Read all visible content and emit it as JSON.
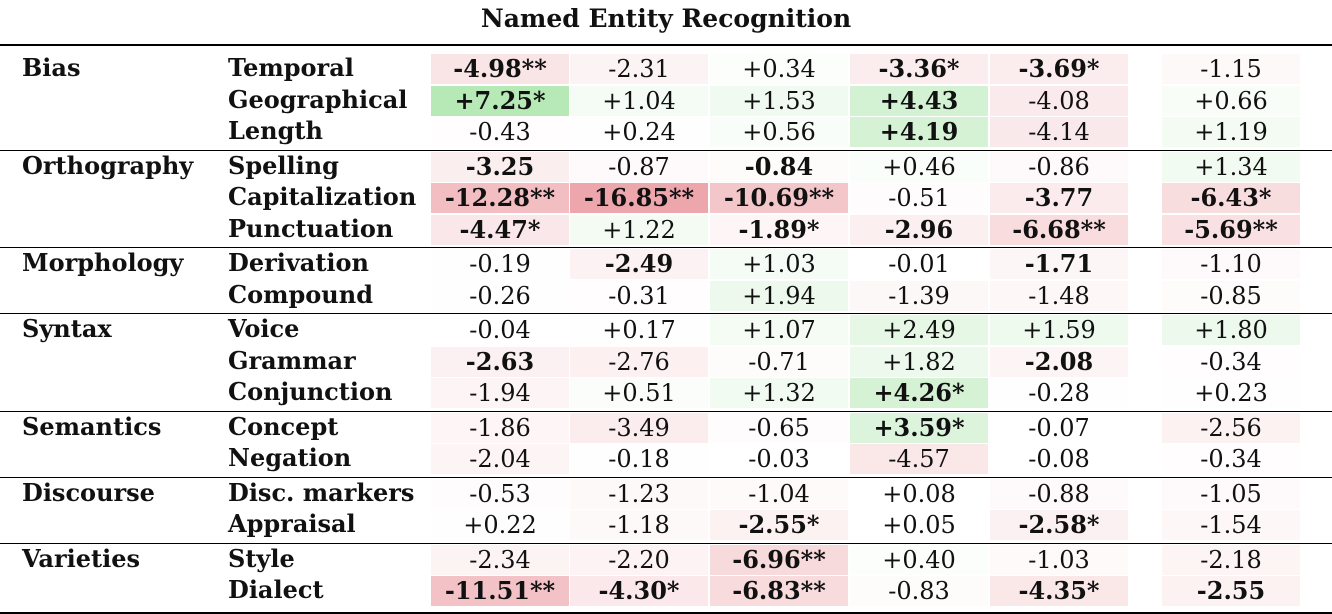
{
  "title": "Named Entity Recognition",
  "colors": {
    "negative": "#e06a72",
    "positive": "#7ad67a"
  },
  "groups": [
    {
      "category": "Bias",
      "rows": [
        {
          "label": "Temporal",
          "cells": [
            {
              "text": "-4.98**",
              "value": -4.98,
              "bold": true
            },
            {
              "text": "-2.31",
              "value": -2.31,
              "bold": false
            },
            {
              "text": "+0.34",
              "value": 0.34,
              "bold": false
            },
            {
              "text": "-3.36*",
              "value": -3.36,
              "bold": true
            },
            {
              "text": "-3.69*",
              "value": -3.69,
              "bold": true
            },
            {
              "text": "-1.15",
              "value": -1.15,
              "bold": false
            }
          ]
        },
        {
          "label": "Geographical",
          "cells": [
            {
              "text": "+7.25*",
              "value": 7.25,
              "bold": true
            },
            {
              "text": "+1.04",
              "value": 1.04,
              "bold": false
            },
            {
              "text": "+1.53",
              "value": 1.53,
              "bold": false
            },
            {
              "text": "+4.43",
              "value": 4.43,
              "bold": true
            },
            {
              "text": "-4.08",
              "value": -4.08,
              "bold": false
            },
            {
              "text": "+0.66",
              "value": 0.66,
              "bold": false
            }
          ]
        },
        {
          "label": "Length",
          "cells": [
            {
              "text": "-0.43",
              "value": -0.43,
              "bold": false
            },
            {
              "text": "+0.24",
              "value": 0.24,
              "bold": false
            },
            {
              "text": "+0.56",
              "value": 0.56,
              "bold": false
            },
            {
              "text": "+4.19",
              "value": 4.19,
              "bold": true
            },
            {
              "text": "-4.14",
              "value": -4.14,
              "bold": false
            },
            {
              "text": "+1.19",
              "value": 1.19,
              "bold": false
            }
          ]
        }
      ]
    },
    {
      "category": "Orthography",
      "rows": [
        {
          "label": "Spelling",
          "cells": [
            {
              "text": "-3.25",
              "value": -3.25,
              "bold": true
            },
            {
              "text": "-0.87",
              "value": -0.87,
              "bold": false
            },
            {
              "text": "-0.84",
              "value": -0.84,
              "bold": true
            },
            {
              "text": "+0.46",
              "value": 0.46,
              "bold": false
            },
            {
              "text": "-0.86",
              "value": -0.86,
              "bold": false
            },
            {
              "text": "+1.34",
              "value": 1.34,
              "bold": false
            }
          ]
        },
        {
          "label": "Capitalization",
          "cells": [
            {
              "text": "-12.28**",
              "value": -12.28,
              "bold": true
            },
            {
              "text": "-16.85**",
              "value": -16.85,
              "bold": true
            },
            {
              "text": "-10.69**",
              "value": -10.69,
              "bold": true
            },
            {
              "text": "-0.51",
              "value": -0.51,
              "bold": false
            },
            {
              "text": "-3.77",
              "value": -3.77,
              "bold": true
            },
            {
              "text": "-6.43*",
              "value": -6.43,
              "bold": true
            }
          ]
        },
        {
          "label": "Punctuation",
          "cells": [
            {
              "text": "-4.47*",
              "value": -4.47,
              "bold": true
            },
            {
              "text": "+1.22",
              "value": 1.22,
              "bold": false
            },
            {
              "text": "-1.89*",
              "value": -1.89,
              "bold": true
            },
            {
              "text": "-2.96",
              "value": -2.96,
              "bold": true
            },
            {
              "text": "-6.68**",
              "value": -6.68,
              "bold": true
            },
            {
              "text": "-5.69**",
              "value": -5.69,
              "bold": true
            }
          ]
        }
      ]
    },
    {
      "category": "Morphology",
      "rows": [
        {
          "label": "Derivation",
          "cells": [
            {
              "text": "-0.19",
              "value": -0.19,
              "bold": false
            },
            {
              "text": "-2.49",
              "value": -2.49,
              "bold": true
            },
            {
              "text": "+1.03",
              "value": 1.03,
              "bold": false
            },
            {
              "text": "-0.01",
              "value": -0.01,
              "bold": false
            },
            {
              "text": "-1.71",
              "value": -1.71,
              "bold": true
            },
            {
              "text": "-1.10",
              "value": -1.1,
              "bold": false
            }
          ]
        },
        {
          "label": "Compound",
          "cells": [
            {
              "text": "-0.26",
              "value": -0.26,
              "bold": false
            },
            {
              "text": "-0.31",
              "value": -0.31,
              "bold": false
            },
            {
              "text": "+1.94",
              "value": 1.94,
              "bold": false
            },
            {
              "text": "-1.39",
              "value": -1.39,
              "bold": false
            },
            {
              "text": "-1.48",
              "value": -1.48,
              "bold": false
            },
            {
              "text": "-0.85",
              "value": -0.85,
              "bold": false
            }
          ]
        }
      ]
    },
    {
      "category": "Syntax",
      "rows": [
        {
          "label": "Voice",
          "cells": [
            {
              "text": "-0.04",
              "value": -0.04,
              "bold": false
            },
            {
              "text": "+0.17",
              "value": 0.17,
              "bold": false
            },
            {
              "text": "+1.07",
              "value": 1.07,
              "bold": false
            },
            {
              "text": "+2.49",
              "value": 2.49,
              "bold": false
            },
            {
              "text": "+1.59",
              "value": 1.59,
              "bold": false
            },
            {
              "text": "+1.80",
              "value": 1.8,
              "bold": false
            }
          ]
        },
        {
          "label": "Grammar",
          "cells": [
            {
              "text": "-2.63",
              "value": -2.63,
              "bold": true
            },
            {
              "text": "-2.76",
              "value": -2.76,
              "bold": false
            },
            {
              "text": "-0.71",
              "value": -0.71,
              "bold": false
            },
            {
              "text": "+1.82",
              "value": 1.82,
              "bold": false
            },
            {
              "text": "-2.08",
              "value": -2.08,
              "bold": true
            },
            {
              "text": "-0.34",
              "value": -0.34,
              "bold": false
            }
          ]
        },
        {
          "label": "Conjunction",
          "cells": [
            {
              "text": "-1.94",
              "value": -1.94,
              "bold": false
            },
            {
              "text": "+0.51",
              "value": 0.51,
              "bold": false
            },
            {
              "text": "+1.32",
              "value": 1.32,
              "bold": false
            },
            {
              "text": "+4.26*",
              "value": 4.26,
              "bold": true
            },
            {
              "text": "-0.28",
              "value": -0.28,
              "bold": false
            },
            {
              "text": "+0.23",
              "value": 0.23,
              "bold": false
            }
          ]
        }
      ]
    },
    {
      "category": "Semantics",
      "rows": [
        {
          "label": "Concept",
          "cells": [
            {
              "text": "-1.86",
              "value": -1.86,
              "bold": false
            },
            {
              "text": "-3.49",
              "value": -3.49,
              "bold": false
            },
            {
              "text": "-0.65",
              "value": -0.65,
              "bold": false
            },
            {
              "text": "+3.59*",
              "value": 3.59,
              "bold": true
            },
            {
              "text": "-0.07",
              "value": -0.07,
              "bold": false
            },
            {
              "text": "-2.56",
              "value": -2.56,
              "bold": false
            }
          ]
        },
        {
          "label": "Negation",
          "cells": [
            {
              "text": "-2.04",
              "value": -2.04,
              "bold": false
            },
            {
              "text": "-0.18",
              "value": -0.18,
              "bold": false
            },
            {
              "text": "-0.03",
              "value": -0.03,
              "bold": false
            },
            {
              "text": "-4.57",
              "value": -4.57,
              "bold": false
            },
            {
              "text": "-0.08",
              "value": -0.08,
              "bold": false
            },
            {
              "text": "-0.34",
              "value": -0.34,
              "bold": false
            }
          ]
        }
      ]
    },
    {
      "category": "Discourse",
      "rows": [
        {
          "label": "Disc. markers",
          "cells": [
            {
              "text": "-0.53",
              "value": -0.53,
              "bold": false
            },
            {
              "text": "-1.23",
              "value": -1.23,
              "bold": false
            },
            {
              "text": "-1.04",
              "value": -1.04,
              "bold": false
            },
            {
              "text": "+0.08",
              "value": 0.08,
              "bold": false
            },
            {
              "text": "-0.88",
              "value": -0.88,
              "bold": false
            },
            {
              "text": "-1.05",
              "value": -1.05,
              "bold": false
            }
          ]
        },
        {
          "label": "Appraisal",
          "cells": [
            {
              "text": "+0.22",
              "value": 0.22,
              "bold": false
            },
            {
              "text": "-1.18",
              "value": -1.18,
              "bold": false
            },
            {
              "text": "-2.55*",
              "value": -2.55,
              "bold": true
            },
            {
              "text": "+0.05",
              "value": 0.05,
              "bold": false
            },
            {
              "text": "-2.58*",
              "value": -2.58,
              "bold": true
            },
            {
              "text": "-1.54",
              "value": -1.54,
              "bold": false
            }
          ]
        }
      ]
    },
    {
      "category": "Varieties",
      "rows": [
        {
          "label": "Style",
          "cells": [
            {
              "text": "-2.34",
              "value": -2.34,
              "bold": false
            },
            {
              "text": "-2.20",
              "value": -2.2,
              "bold": false
            },
            {
              "text": "-6.96**",
              "value": -6.96,
              "bold": true
            },
            {
              "text": "+0.40",
              "value": 0.4,
              "bold": false
            },
            {
              "text": "-1.03",
              "value": -1.03,
              "bold": false
            },
            {
              "text": "-2.18",
              "value": -2.18,
              "bold": false
            }
          ]
        },
        {
          "label": "Dialect",
          "cells": [
            {
              "text": "-11.51**",
              "value": -11.51,
              "bold": true
            },
            {
              "text": "-4.30*",
              "value": -4.3,
              "bold": true
            },
            {
              "text": "-6.83**",
              "value": -6.83,
              "bold": true
            },
            {
              "text": "-0.83",
              "value": -0.83,
              "bold": false
            },
            {
              "text": "-4.35*",
              "value": -4.35,
              "bold": true
            },
            {
              "text": "-2.55",
              "value": -2.55,
              "bold": true
            }
          ]
        }
      ]
    }
  ]
}
